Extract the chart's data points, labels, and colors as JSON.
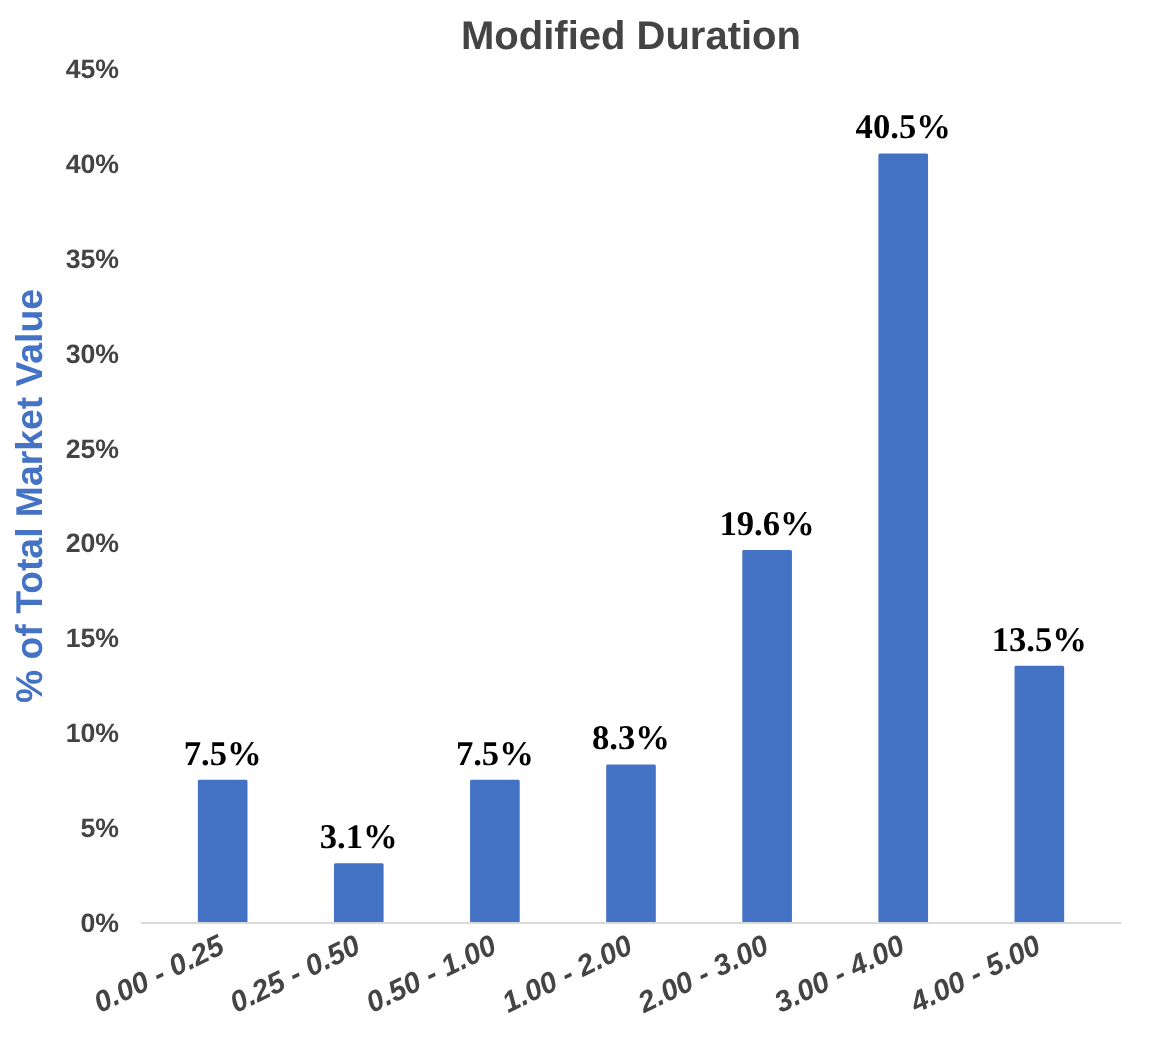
{
  "chart_data": {
    "type": "bar",
    "title": "Modified Duration",
    "ylabel": "% of Total Market Value",
    "categories": [
      "0.00 - 0.25",
      "0.25 - 0.50",
      "0.50 - 1.00",
      "1.00 - 2.00",
      "2.00 - 3.00",
      "3.00 - 4.00",
      "4.00 - 5.00"
    ],
    "values": [
      7.5,
      3.1,
      7.5,
      8.3,
      19.6,
      40.5,
      13.5
    ],
    "value_labels": [
      "7.5%",
      "3.1%",
      "7.5%",
      "8.3%",
      "19.6%",
      "40.5%",
      "13.5%"
    ],
    "color": "#4472c4",
    "ylim": [
      0,
      45
    ],
    "yticks": [
      {
        "value": 0,
        "label": "0%"
      },
      {
        "value": 5,
        "label": "5%"
      },
      {
        "value": 10,
        "label": "10%"
      },
      {
        "value": 15,
        "label": "15%"
      },
      {
        "value": 20,
        "label": "20%"
      },
      {
        "value": 25,
        "label": "25%"
      },
      {
        "value": 30,
        "label": "30%"
      },
      {
        "value": 35,
        "label": "35%"
      },
      {
        "value": 40,
        "label": "40%"
      },
      {
        "value": 45,
        "label": "45%"
      }
    ],
    "grid": false
  }
}
